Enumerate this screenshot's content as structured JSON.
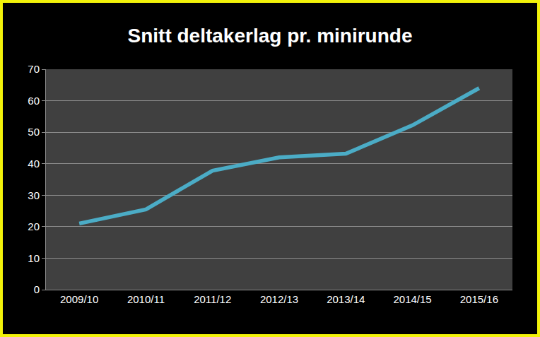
{
  "chart_data": {
    "type": "line",
    "title": "Snitt deltakerlag pr. minirunde",
    "categories": [
      "2009/10",
      "2010/11",
      "2011/12",
      "2012/13",
      "2013/14",
      "2014/15",
      "2015/16"
    ],
    "values": [
      21,
      25.5,
      37.8,
      42,
      43.2,
      52.2,
      64
    ],
    "color": "#4bacc6",
    "ylim": [
      0,
      70
    ],
    "yticks": [
      0,
      10,
      20,
      30,
      40,
      50,
      60,
      70
    ],
    "grid": true
  }
}
